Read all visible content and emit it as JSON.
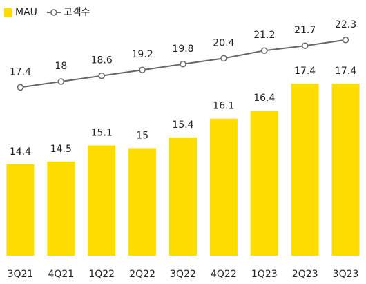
{
  "chart_data": {
    "type": "bar_line",
    "categories": [
      "3Q21",
      "4Q21",
      "1Q22",
      "2Q22",
      "3Q22",
      "4Q22",
      "1Q23",
      "2Q23",
      "3Q23"
    ],
    "series": [
      {
        "name": "MAU",
        "type": "bar",
        "color": "#fddc00",
        "values": [
          14.4,
          14.5,
          15.1,
          15.0,
          15.4,
          16.1,
          16.4,
          17.4,
          17.4
        ]
      },
      {
        "name": "고객수",
        "type": "line",
        "axis": "y2",
        "color": "#666666",
        "values": [
          17.4,
          18.0,
          18.6,
          19.2,
          19.8,
          20.4,
          21.2,
          21.7,
          22.3
        ]
      }
    ],
    "ylim": [
      11,
      20
    ],
    "y2lim": [
      0,
      25
    ],
    "legend": "top-left"
  }
}
